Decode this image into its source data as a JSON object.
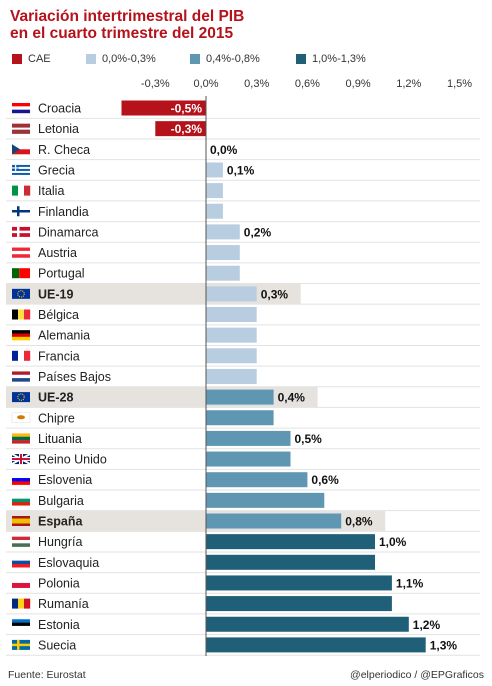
{
  "header": {
    "title_line1": "Variación intertrimestral del PIB",
    "title_line2": "en el cuarto trimestre del 2015"
  },
  "legend": [
    {
      "label": "CAE",
      "color": "#b5121b"
    },
    {
      "label": "0,0%-0,3%",
      "color": "#b8cde0"
    },
    {
      "label": "0,4%-0,8%",
      "color": "#5f97b3"
    },
    {
      "label": "1,0%-1,3%",
      "color": "#1f5f78"
    }
  ],
  "footer": {
    "source": "Fuente: Eurostat",
    "credit": "@elperiodico / @EPGraficos"
  },
  "chart_data": {
    "type": "bar",
    "orientation": "horizontal",
    "unit": "%",
    "xlim": [
      -0.5,
      1.5
    ],
    "x_ticks": [
      "-0,3%",
      "0,0%",
      "0,3%",
      "0,6%",
      "0,9%",
      "1,2%",
      "1,5%"
    ],
    "x_tick_values": [
      -0.3,
      0.0,
      0.3,
      0.6,
      0.9,
      1.2,
      1.5
    ],
    "grid": false,
    "legend_position": "top",
    "categories": [
      "Croacia",
      "Letonia",
      "R. Checa",
      "Grecia",
      "Italia",
      "Finlandia",
      "Dinamarca",
      "Austria",
      "Portugal",
      "UE-19",
      "Bélgica",
      "Alemania",
      "Francia",
      "Países Bajos",
      "UE-28",
      "Chipre",
      "Lituania",
      "Reino Unido",
      "Eslovenia",
      "Bulgaria",
      "España",
      "Hungría",
      "Eslovaquia",
      "Polonia",
      "Rumanía",
      "Estonia",
      "Suecia"
    ],
    "values": [
      -0.5,
      -0.3,
      0.0,
      0.1,
      0.1,
      0.1,
      0.2,
      0.2,
      0.2,
      0.3,
      0.3,
      0.3,
      0.3,
      0.3,
      0.4,
      0.4,
      0.5,
      0.5,
      0.6,
      0.7,
      0.8,
      1.0,
      1.0,
      1.1,
      1.1,
      1.2,
      1.3
    ],
    "data_labels": [
      "-0,5%",
      "-0,3%",
      "0,0%",
      "0,1%",
      "",
      "",
      "0,2%",
      "",
      "",
      "0,3%",
      "",
      "",
      "",
      "",
      "0,4%",
      "",
      "0,5%",
      "",
      "0,6%",
      "",
      "0,8%",
      "1,0%",
      "",
      "1,1%",
      "",
      "1,2%",
      "1,3%"
    ],
    "highlighted": [
      "UE-19",
      "UE-28",
      "España"
    ],
    "flags": [
      {
        "type": "h",
        "colors": [
          "#ff0000",
          "#ffffff",
          "#171796"
        ]
      },
      {
        "type": "h3",
        "colors": [
          "#9e3039",
          "#ffffff",
          "#9e3039"
        ]
      },
      {
        "type": "cz",
        "colors": [
          "#ffffff",
          "#d7141a",
          "#11457e"
        ]
      },
      {
        "type": "stripes",
        "colors": [
          "#0d5eaf",
          "#ffffff"
        ]
      },
      {
        "type": "v",
        "colors": [
          "#009246",
          "#ffffff",
          "#ce2b37"
        ]
      },
      {
        "type": "nordic",
        "colors": [
          "#ffffff",
          "#003580"
        ]
      },
      {
        "type": "nordic",
        "colors": [
          "#c8102e",
          "#ffffff"
        ]
      },
      {
        "type": "h",
        "colors": [
          "#ed2939",
          "#ffffff",
          "#ed2939"
        ]
      },
      {
        "type": "v2",
        "colors": [
          "#006600",
          "#ff0000"
        ]
      },
      {
        "type": "eu",
        "colors": [
          "#003399",
          "#ffcc00"
        ]
      },
      {
        "type": "v",
        "colors": [
          "#000000",
          "#fae042",
          "#ed2939"
        ]
      },
      {
        "type": "h",
        "colors": [
          "#000000",
          "#dd0000",
          "#ffce00"
        ]
      },
      {
        "type": "v",
        "colors": [
          "#002395",
          "#ffffff",
          "#ed2939"
        ]
      },
      {
        "type": "h",
        "colors": [
          "#ae1c28",
          "#ffffff",
          "#21468b"
        ]
      },
      {
        "type": "eu",
        "colors": [
          "#003399",
          "#ffcc00"
        ]
      },
      {
        "type": "cy",
        "colors": [
          "#ffffff",
          "#d57800"
        ]
      },
      {
        "type": "h",
        "colors": [
          "#fdb913",
          "#006a44",
          "#c1272d"
        ]
      },
      {
        "type": "uk",
        "colors": [
          "#012169",
          "#ffffff",
          "#c8102e"
        ]
      },
      {
        "type": "h",
        "colors": [
          "#ffffff",
          "#0000ff",
          "#ff0000"
        ]
      },
      {
        "type": "h",
        "colors": [
          "#ffffff",
          "#00966e",
          "#d62612"
        ]
      },
      {
        "type": "es",
        "colors": [
          "#aa151b",
          "#f1bf00",
          "#aa151b"
        ]
      },
      {
        "type": "h",
        "colors": [
          "#ce2939",
          "#ffffff",
          "#477050"
        ]
      },
      {
        "type": "h",
        "colors": [
          "#ffffff",
          "#0b4ea2",
          "#ee1c25"
        ]
      },
      {
        "type": "h2",
        "colors": [
          "#ffffff",
          "#dc143c"
        ]
      },
      {
        "type": "v",
        "colors": [
          "#002b7f",
          "#fcd116",
          "#ce1126"
        ]
      },
      {
        "type": "h",
        "colors": [
          "#0072ce",
          "#000000",
          "#ffffff"
        ]
      },
      {
        "type": "nordic",
        "colors": [
          "#006aa7",
          "#fecc00"
        ]
      }
    ]
  }
}
